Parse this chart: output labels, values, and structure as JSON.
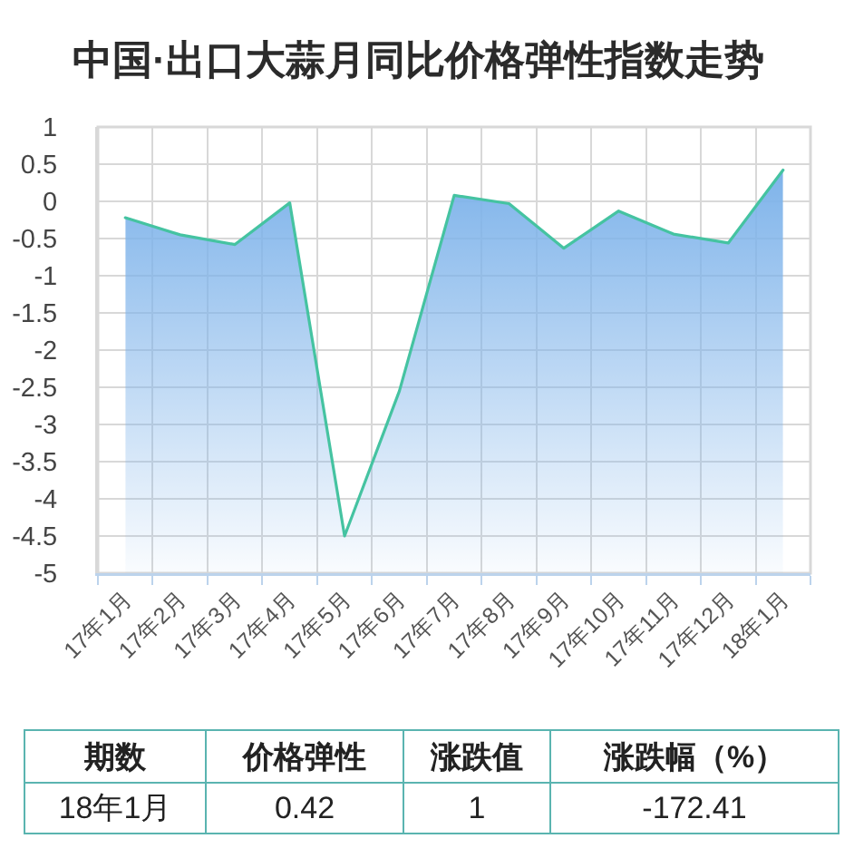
{
  "chart_data": [
    {
      "type": "area",
      "title": "中国·出口大蒜月同比价格弹性指数走势",
      "categories": [
        "17年1月",
        "17年2月",
        "17年3月",
        "17年4月",
        "17年5月",
        "17年6月",
        "17年7月",
        "17年8月",
        "17年9月",
        "17年10月",
        "17年11月",
        "17年12月",
        "18年1月"
      ],
      "series": [
        {
          "type": "line",
          "color": "#45c3a1",
          "values": [
            -0.22,
            -0.45,
            -0.58,
            -0.02,
            -4.5,
            -2.55,
            0.08,
            -0.03,
            -0.63,
            -0.13,
            -0.44,
            -0.56,
            0.42
          ],
          "lower": [
            -5,
            -5,
            -5,
            -5,
            -5,
            -5,
            -5,
            -5,
            -5,
            -5,
            -5,
            -5,
            -5
          ],
          "upper": [
            -0.22,
            -0.45,
            -0.58,
            -0.02,
            -4.5,
            -2.55,
            0.08,
            -0.03,
            -0.63,
            -0.13,
            -0.44,
            -0.56,
            0.42
          ]
        }
      ],
      "ylim": [
        -5,
        1
      ],
      "yticks": [
        1,
        0.5,
        0,
        -0.5,
        -1,
        -1.5,
        -2,
        -2.5,
        -3,
        -3.5,
        -4,
        -4.5,
        -5
      ],
      "grid": true
    },
    {
      "type": "other",
      "categories": [
        "期数",
        "价格弹性",
        "涨跌值",
        "涨跌幅（%）"
      ],
      "annotations": [
        "18年1月",
        "0.42",
        "1",
        "-172.41"
      ]
    }
  ]
}
